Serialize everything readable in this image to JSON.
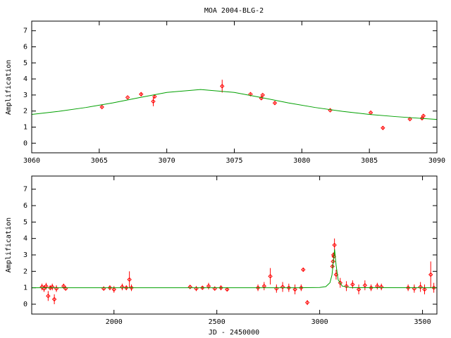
{
  "chart_data": [
    {
      "type": "scatter",
      "title": "MOA 2004-BLG-2",
      "ylabel": "Amplification",
      "xlim": [
        3060,
        3090
      ],
      "ylim": [
        -0.6,
        7.6
      ],
      "xticks": [
        3060,
        3065,
        3070,
        3075,
        3080,
        3085,
        3090
      ],
      "yticks": [
        0,
        1,
        2,
        3,
        4,
        5,
        6,
        7
      ],
      "series": [
        {
          "type": "scatter",
          "color": "#ff0000",
          "x": [
            3065.2,
            3067.1,
            3068.1,
            3069.0,
            3069.1,
            3074.1,
            3076.2,
            3077.0,
            3077.1,
            3078.0,
            3082.1,
            3085.1,
            3086.0,
            3088.0,
            3088.9,
            3089.0
          ],
          "values": [
            2.25,
            2.85,
            3.05,
            2.6,
            2.9,
            3.55,
            3.05,
            2.8,
            3.0,
            2.5,
            2.05,
            1.9,
            0.95,
            1.5,
            1.55,
            1.7
          ],
          "errors": [
            0.05,
            0.05,
            0.08,
            0.3,
            0.1,
            0.4,
            0.05,
            0.08,
            0.05,
            0.08,
            0.05,
            0.05,
            0.1,
            0.05,
            0.08,
            0.08
          ]
        },
        {
          "type": "line",
          "color": "#00a000",
          "x": [
            3060,
            3062,
            3064,
            3066,
            3068,
            3070,
            3072.5,
            3075,
            3077,
            3079,
            3081,
            3083,
            3085,
            3087,
            3090
          ],
          "values": [
            1.79,
            1.98,
            2.22,
            2.51,
            2.84,
            3.16,
            3.34,
            3.16,
            2.84,
            2.51,
            2.22,
            1.98,
            1.79,
            1.65,
            1.48
          ]
        }
      ]
    },
    {
      "type": "scatter",
      "ylabel": "Amplification",
      "xlabel": "JD - 2450000",
      "xlim": [
        1600,
        3570
      ],
      "ylim": [
        -0.6,
        7.8
      ],
      "xticks": [
        2000,
        2500,
        3000,
        3500
      ],
      "yticks": [
        0,
        1,
        2,
        3,
        4,
        5,
        6,
        7
      ],
      "series": [
        {
          "type": "scatter",
          "color": "#ff0000",
          "x": [
            1650,
            1660,
            1670,
            1680,
            1690,
            1700,
            1710,
            1720,
            1755,
            1765,
            1950,
            1980,
            2000,
            2040,
            2060,
            2075,
            2085,
            2370,
            2400,
            2430,
            2460,
            2490,
            2520,
            2550,
            2700,
            2730,
            2760,
            2790,
            2820,
            2850,
            2880,
            2910,
            2920,
            2940,
            3062,
            3065,
            3067,
            3069,
            3072,
            3080,
            3100,
            3130,
            3160,
            3190,
            3220,
            3250,
            3280,
            3300,
            3430,
            3460,
            3490,
            3510,
            3540,
            3555
          ],
          "values": [
            1.05,
            0.95,
            1.1,
            0.5,
            1.0,
            1.05,
            0.3,
            0.95,
            1.1,
            0.95,
            0.95,
            1.0,
            0.9,
            1.05,
            1.0,
            1.5,
            1.0,
            1.05,
            0.95,
            1.0,
            1.1,
            0.95,
            1.0,
            0.9,
            1.0,
            1.1,
            1.7,
            0.95,
            1.05,
            1.0,
            0.9,
            1.0,
            2.1,
            0.1,
            2.3,
            2.6,
            3.0,
            2.9,
            3.6,
            1.8,
            1.3,
            1.1,
            1.2,
            0.9,
            1.15,
            1.0,
            1.1,
            1.05,
            1.0,
            0.95,
            1.05,
            0.9,
            1.8,
            1.0
          ],
          "errors": [
            0.2,
            0.2,
            0.2,
            0.3,
            0.15,
            0.2,
            0.3,
            0.2,
            0.15,
            0.1,
            0.1,
            0.15,
            0.2,
            0.2,
            0.15,
            0.5,
            0.2,
            0.1,
            0.15,
            0.1,
            0.2,
            0.1,
            0.15,
            0.1,
            0.2,
            0.25,
            0.5,
            0.25,
            0.3,
            0.25,
            0.3,
            0.2,
            0.1,
            0.15,
            0.1,
            0.1,
            0.15,
            0.1,
            0.4,
            0.3,
            0.3,
            0.3,
            0.25,
            0.3,
            0.3,
            0.2,
            0.2,
            0.2,
            0.2,
            0.25,
            0.3,
            0.3,
            0.8,
            0.3
          ]
        },
        {
          "type": "line",
          "color": "#00a000",
          "x": [
            1600,
            2900,
            3000,
            3030,
            3050,
            3060,
            3066,
            3072.5,
            3080,
            3090,
            3110,
            3150,
            3570
          ],
          "values": [
            1.0,
            1.0,
            1.02,
            1.07,
            1.31,
            1.79,
            2.51,
            3.34,
            2.36,
            1.48,
            1.1,
            1.01,
            1.0
          ]
        }
      ]
    }
  ]
}
